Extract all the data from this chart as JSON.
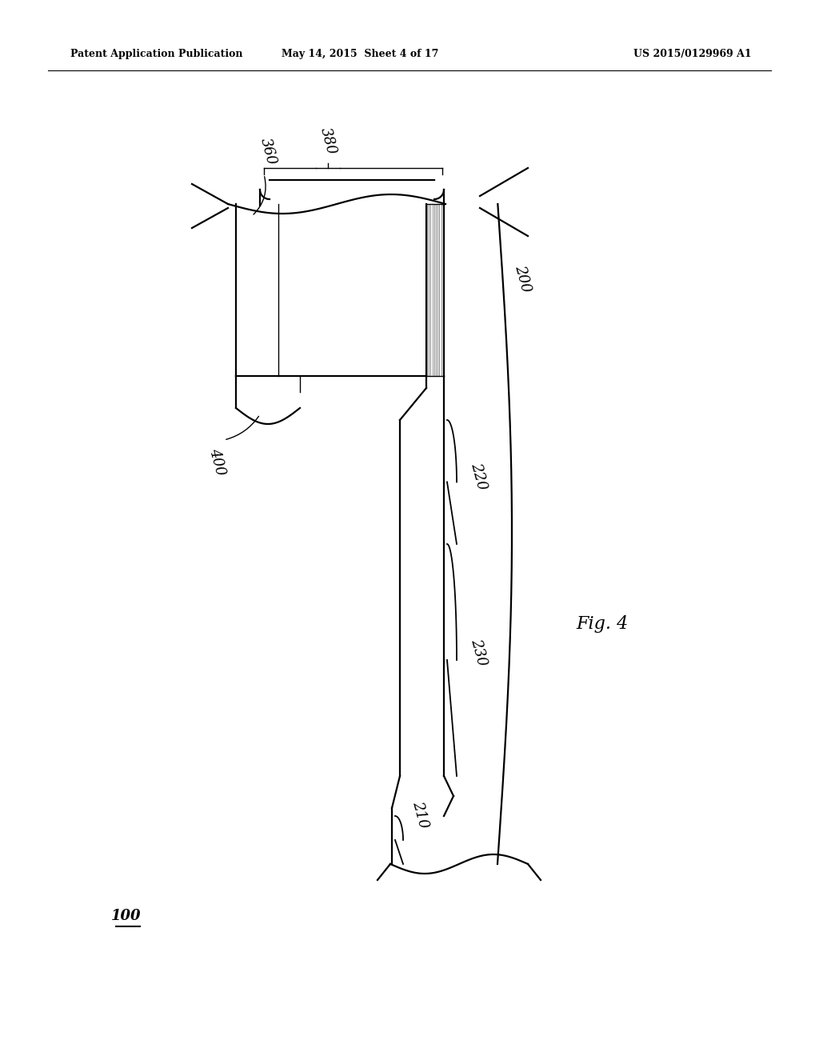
{
  "background_color": "#ffffff",
  "header_left": "Patent Application Publication",
  "header_mid": "May 14, 2015  Sheet 4 of 17",
  "header_right": "US 2015/0129969 A1",
  "fig_label": "Fig. 4",
  "label_100": "100",
  "label_200": "200",
  "label_210": "210",
  "label_220": "220",
  "label_230": "230",
  "label_360": "360",
  "label_380": "380",
  "label_400": "400",
  "lw_main": 1.6,
  "lw_thin": 1.0
}
